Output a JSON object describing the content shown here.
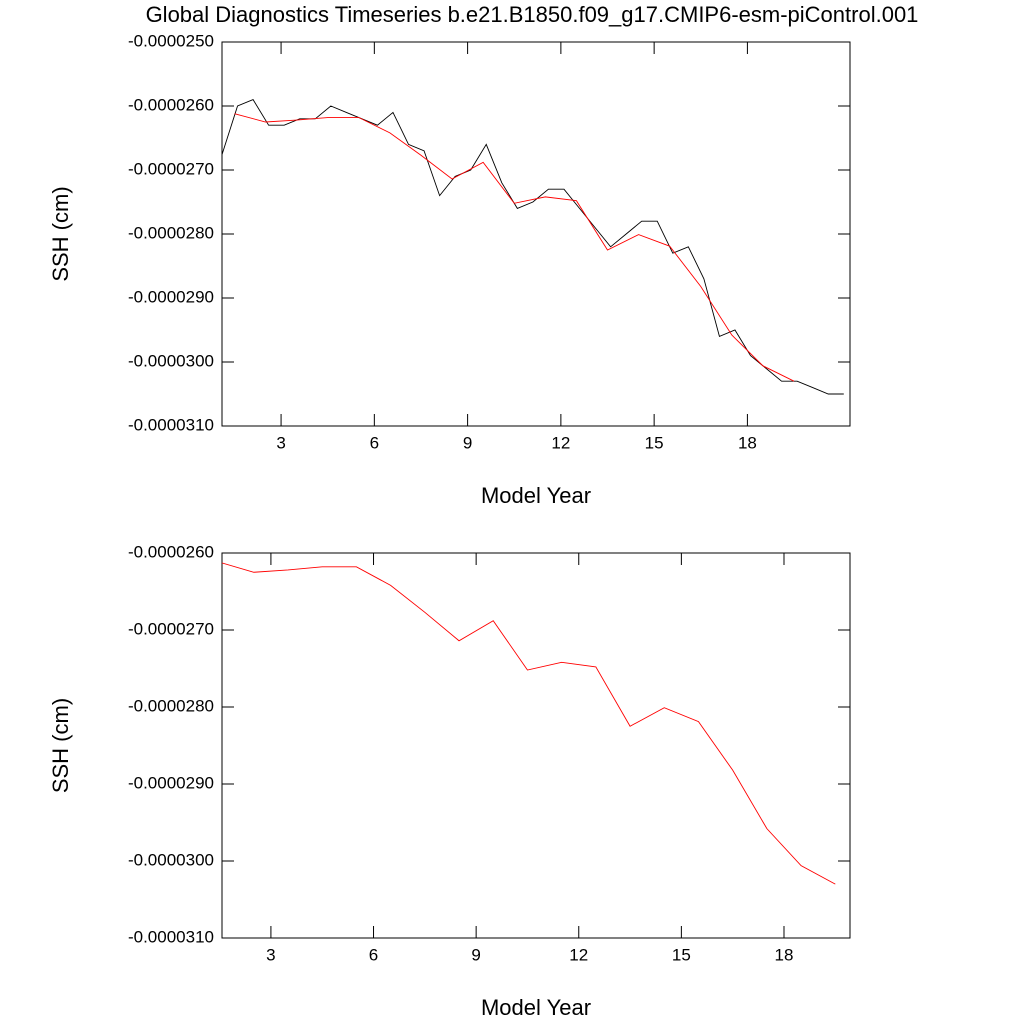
{
  "chart_data": [
    {
      "type": "line",
      "title": "Global Diagnostics Timeseries b.e21.B1850.f09_g17.CMIP6-esm-piControl.001",
      "x_label": "Model Year",
      "y_label": "SSH (cm)",
      "xlim": [
        1.1,
        21.3
      ],
      "xticks": [
        3,
        6,
        9,
        12,
        15,
        18
      ],
      "ylim": [
        -3.1e-05,
        -2.5e-05
      ],
      "yticks": [
        {
          "value": -3.1e-05,
          "label": "-0.0000310"
        },
        {
          "value": -3e-05,
          "label": "-0.0000300"
        },
        {
          "value": -2.9e-05,
          "label": "-0.0000290"
        },
        {
          "value": -2.8e-05,
          "label": "-0.0000280"
        },
        {
          "value": -2.7e-05,
          "label": "-0.0000270"
        },
        {
          "value": -2.6e-05,
          "label": "-0.0000260"
        },
        {
          "value": -2.5e-05,
          "label": "-0.0000250"
        }
      ],
      "series": [
        {
          "color": "#000000",
          "x": [
            1.1,
            1.6,
            2.1,
            2.6,
            3.1,
            3.6,
            4.1,
            4.6,
            5.1,
            5.6,
            6.1,
            6.6,
            7.1,
            7.6,
            8.1,
            8.6,
            9.1,
            9.6,
            10.1,
            10.6,
            11.1,
            11.6,
            12.1,
            12.6,
            13.1,
            13.6,
            14.1,
            14.6,
            15.1,
            15.6,
            16.1,
            16.6,
            17.1,
            17.6,
            18.1,
            18.6,
            19.1,
            19.6,
            20.1,
            20.6,
            21.1
          ],
          "values": [
            -2.676e-05,
            -2.6e-05,
            -2.59e-05,
            -2.63e-05,
            -2.63e-05,
            -2.62e-05,
            -2.62e-05,
            -2.6e-05,
            -2.61e-05,
            -2.62e-05,
            -2.63e-05,
            -2.61e-05,
            -2.66e-05,
            -2.67e-05,
            -2.74e-05,
            -2.71e-05,
            -2.7e-05,
            -2.66e-05,
            -2.72e-05,
            -2.76e-05,
            -2.75e-05,
            -2.73e-05,
            -2.73e-05,
            -2.76e-05,
            -2.79e-05,
            -2.82e-05,
            -2.8e-05,
            -2.78e-05,
            -2.78e-05,
            -2.83e-05,
            -2.82e-05,
            -2.87e-05,
            -2.96e-05,
            -2.95e-05,
            -2.99e-05,
            -3.01e-05,
            -3.03e-05,
            -3.03e-05,
            -3.04e-05,
            -3.05e-05,
            -3.05e-05
          ]
        },
        {
          "color": "#ff0000",
          "x": [
            1.5,
            2.5,
            3.5,
            4.5,
            5.5,
            6.5,
            7.5,
            8.5,
            9.5,
            10.5,
            11.5,
            12.5,
            13.5,
            14.5,
            15.5,
            16.5,
            17.5,
            18.5,
            19.5
          ],
          "values": [
            -2.612e-05,
            -2.625e-05,
            -2.622e-05,
            -2.618e-05,
            -2.618e-05,
            -2.642e-05,
            -2.677e-05,
            -2.714e-05,
            -2.688e-05,
            -2.752e-05,
            -2.742e-05,
            -2.748e-05,
            -2.825e-05,
            -2.801e-05,
            -2.819e-05,
            -2.882e-05,
            -2.958e-05,
            -3.006e-05,
            -3.03e-05
          ]
        }
      ]
    },
    {
      "type": "line",
      "x_label": "Model Year",
      "y_label": "SSH (cm)",
      "xlim": [
        1.57,
        19.93
      ],
      "xticks": [
        3,
        6,
        9,
        12,
        15,
        18
      ],
      "ylim": [
        -3.1e-05,
        -2.6e-05
      ],
      "yticks": [
        {
          "value": -3.1e-05,
          "label": "-0.0000310"
        },
        {
          "value": -3e-05,
          "label": "-0.0000300"
        },
        {
          "value": -2.9e-05,
          "label": "-0.0000290"
        },
        {
          "value": -2.8e-05,
          "label": "-0.0000280"
        },
        {
          "value": -2.7e-05,
          "label": "-0.0000270"
        },
        {
          "value": -2.6e-05,
          "label": "-0.0000260"
        }
      ],
      "series": [
        {
          "color": "#ff0000",
          "x": [
            1.5,
            2.5,
            3.5,
            4.5,
            5.5,
            6.5,
            7.5,
            8.5,
            9.5,
            10.5,
            11.5,
            12.5,
            13.5,
            14.5,
            15.5,
            16.5,
            17.5,
            18.5,
            19.5
          ],
          "values": [
            -2.612e-05,
            -2.625e-05,
            -2.622e-05,
            -2.618e-05,
            -2.618e-05,
            -2.642e-05,
            -2.677e-05,
            -2.714e-05,
            -2.688e-05,
            -2.752e-05,
            -2.742e-05,
            -2.748e-05,
            -2.825e-05,
            -2.801e-05,
            -2.819e-05,
            -2.882e-05,
            -2.958e-05,
            -3.006e-05,
            -3.03e-05
          ]
        }
      ]
    }
  ]
}
